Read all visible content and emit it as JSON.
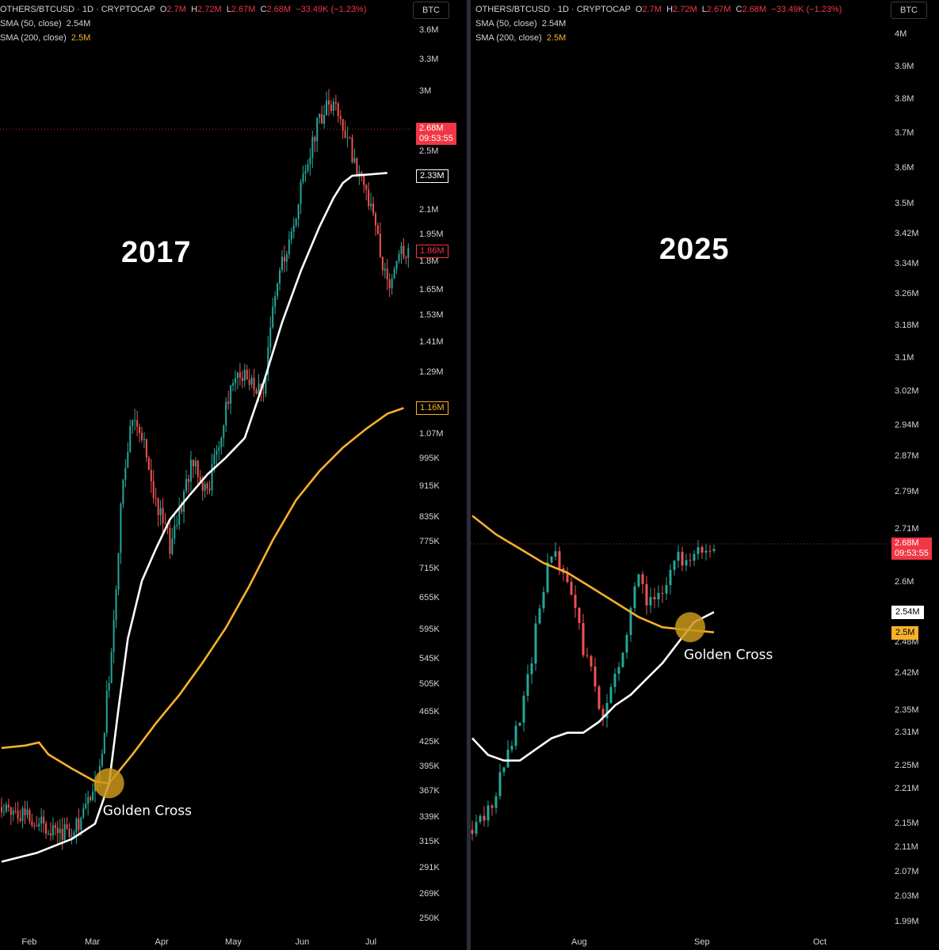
{
  "legend": {
    "symbol_line": "OTHERS/BTCUSD · 1D · CRYPTOCAP",
    "o_label": "O",
    "o_value": "2.7M",
    "h_label": "H",
    "h_value": "2.72M",
    "l_label": "L",
    "l_value": "2.67M",
    "c_label": "C",
    "c_value": "2.68M",
    "change": "−33.49K (−1.23%)",
    "sma50_label": "SMA (50, close)",
    "sma50_value": "2.54M",
    "sma200_label": "SMA (200, close)",
    "sma200_value": "2.5M"
  },
  "currency_badge": "BTC",
  "colors": {
    "up": "#26a69a",
    "down": "#ef5350",
    "sma50": "#ffffff",
    "sma200": "#f7b12b",
    "accent_red": "#f23645",
    "background": "#000000"
  },
  "chart_data": [
    {
      "type": "candlestick",
      "title": "2017",
      "annotation": "Golden Cross",
      "scale": "log",
      "y_tick_labels": [
        "3.6M",
        "3.3M",
        "3M",
        "2.5M",
        "2.1M",
        "1.95M",
        "1.8M",
        "1.65M",
        "1.53M",
        "1.41M",
        "1.29M",
        "1.07M",
        "995K",
        "915K",
        "835K",
        "775K",
        "715K",
        "655K",
        "595K",
        "545K",
        "505K",
        "465K",
        "425K",
        "395K",
        "367K",
        "339K",
        "315K",
        "291K",
        "269K",
        "250K"
      ],
      "y_tick_values": [
        3600000,
        3300000,
        3000000,
        2500000,
        2100000,
        1950000,
        1800000,
        1650000,
        1530000,
        1410000,
        1290000,
        1070000,
        995000,
        915000,
        835000,
        775000,
        715000,
        655000,
        595000,
        545000,
        505000,
        465000,
        425000,
        395000,
        367000,
        339000,
        315000,
        291000,
        269000,
        250000
      ],
      "x_tick_labels": [
        "Feb",
        "Mar",
        "Apr",
        "May",
        "Jun",
        "Jul"
      ],
      "x_tick_days": [
        12,
        39,
        69,
        99,
        129,
        159
      ],
      "price_markers": [
        {
          "label": "2.68M",
          "sub": "09:53:55",
          "value": 2680000,
          "style": "current"
        },
        {
          "label": "2.33M",
          "value": 2330000,
          "style": "sma50"
        },
        {
          "label": "1.86M",
          "value": 1860000,
          "style": "last"
        },
        {
          "label": "1.16M",
          "value": 1160000,
          "style": "sma200"
        }
      ],
      "current_line_value": 2680000,
      "cross_day": 46,
      "cross_value": 376000,
      "days": 180,
      "anchors": [
        [
          0,
          350000
        ],
        [
          10,
          345000
        ],
        [
          20,
          330000
        ],
        [
          28,
          325000
        ],
        [
          35,
          340000
        ],
        [
          42,
          390000
        ],
        [
          48,
          600000
        ],
        [
          52,
          950000
        ],
        [
          56,
          1150000
        ],
        [
          60,
          1080000
        ],
        [
          66,
          870000
        ],
        [
          72,
          770000
        ],
        [
          76,
          850000
        ],
        [
          82,
          1000000
        ],
        [
          88,
          900000
        ],
        [
          94,
          1080000
        ],
        [
          100,
          1300000
        ],
        [
          106,
          1250000
        ],
        [
          112,
          1200000
        ],
        [
          116,
          1550000
        ],
        [
          120,
          1800000
        ],
        [
          125,
          2000000
        ],
        [
          130,
          2400000
        ],
        [
          135,
          2700000
        ],
        [
          140,
          2900000
        ],
        [
          144,
          2800000
        ],
        [
          148,
          2600000
        ],
        [
          152,
          2400000
        ],
        [
          156,
          2200000
        ],
        [
          160,
          2000000
        ],
        [
          163,
          1800000
        ],
        [
          166,
          1650000
        ],
        [
          170,
          1860000
        ],
        [
          174,
          1870000
        ]
      ],
      "sma50_points": [
        [
          0,
          297000
        ],
        [
          15,
          305000
        ],
        [
          30,
          318000
        ],
        [
          40,
          333000
        ],
        [
          46,
          376000
        ],
        [
          50,
          470000
        ],
        [
          54,
          580000
        ],
        [
          60,
          690000
        ],
        [
          66,
          760000
        ],
        [
          72,
          830000
        ],
        [
          80,
          890000
        ],
        [
          88,
          950000
        ],
        [
          96,
          1000000
        ],
        [
          104,
          1060000
        ],
        [
          112,
          1250000
        ],
        [
          120,
          1500000
        ],
        [
          128,
          1750000
        ],
        [
          136,
          2000000
        ],
        [
          142,
          2180000
        ],
        [
          146,
          2280000
        ],
        [
          150,
          2330000
        ],
        [
          158,
          2340000
        ],
        [
          165,
          2350000
        ]
      ],
      "sma200_points": [
        [
          0,
          418000
        ],
        [
          10,
          421000
        ],
        [
          16,
          425000
        ],
        [
          20,
          410000
        ],
        [
          30,
          393000
        ],
        [
          40,
          378000
        ],
        [
          46,
          376000
        ],
        [
          56,
          410000
        ],
        [
          66,
          450000
        ],
        [
          76,
          490000
        ],
        [
          86,
          540000
        ],
        [
          96,
          600000
        ],
        [
          106,
          680000
        ],
        [
          116,
          780000
        ],
        [
          126,
          880000
        ],
        [
          136,
          960000
        ],
        [
          146,
          1030000
        ],
        [
          156,
          1090000
        ],
        [
          165,
          1140000
        ],
        [
          172,
          1160000
        ]
      ]
    },
    {
      "type": "candlestick",
      "title": "2025",
      "annotation": "Golden Cross",
      "scale": "log",
      "y_tick_labels": [
        "4M",
        "3.9M",
        "3.8M",
        "3.7M",
        "3.6M",
        "3.5M",
        "3.42M",
        "3.34M",
        "3.26M",
        "3.18M",
        "3.1M",
        "3.02M",
        "2.94M",
        "2.87M",
        "2.79M",
        "2.71M",
        "2.6M",
        "2.48M",
        "2.42M",
        "2.35M",
        "2.31M",
        "2.25M",
        "2.21M",
        "2.15M",
        "2.11M",
        "2.07M",
        "2.03M",
        "1.99M"
      ],
      "y_tick_values": [
        4000000,
        3900000,
        3800000,
        3700000,
        3600000,
        3500000,
        3420000,
        3340000,
        3260000,
        3180000,
        3100000,
        3020000,
        2940000,
        2870000,
        2790000,
        2710000,
        2600000,
        2480000,
        2420000,
        2350000,
        2310000,
        2250000,
        2210000,
        2150000,
        2110000,
        2070000,
        2030000,
        1990000
      ],
      "x_tick_labels": [
        "Aug",
        "Sep",
        "Oct"
      ],
      "x_tick_days": [
        27,
        58,
        88
      ],
      "price_markers": [
        {
          "label": "2.68M",
          "sub": "09:53:55",
          "value": 2680000,
          "style": "current"
        },
        {
          "label": "2.54M",
          "value": 2540000,
          "style": "sma50"
        },
        {
          "label": "2.5M",
          "value": 2500000,
          "style": "sma200"
        }
      ],
      "current_line_value": 2680000,
      "cross_day": 55,
      "cross_value": 2510000,
      "days": 118,
      "anchors": [
        [
          0,
          2140000
        ],
        [
          4,
          2170000
        ],
        [
          8,
          2250000
        ],
        [
          12,
          2330000
        ],
        [
          15,
          2450000
        ],
        [
          17,
          2560000
        ],
        [
          19,
          2630000
        ],
        [
          21,
          2650000
        ],
        [
          24,
          2600000
        ],
        [
          26,
          2560000
        ],
        [
          28,
          2460000
        ],
        [
          30,
          2420000
        ],
        [
          33,
          2330000
        ],
        [
          35,
          2400000
        ],
        [
          38,
          2460000
        ],
        [
          40,
          2560000
        ],
        [
          42,
          2620000
        ],
        [
          44,
          2560000
        ],
        [
          46,
          2560000
        ],
        [
          48,
          2590000
        ],
        [
          50,
          2620000
        ],
        [
          52,
          2660000
        ],
        [
          54,
          2640000
        ],
        [
          57,
          2660000
        ],
        [
          59,
          2670000
        ],
        [
          61,
          2680000
        ]
      ],
      "sma50_points": [
        [
          0,
          2300000
        ],
        [
          4,
          2270000
        ],
        [
          8,
          2260000
        ],
        [
          12,
          2260000
        ],
        [
          16,
          2280000
        ],
        [
          20,
          2300000
        ],
        [
          24,
          2310000
        ],
        [
          28,
          2310000
        ],
        [
          32,
          2330000
        ],
        [
          36,
          2360000
        ],
        [
          40,
          2380000
        ],
        [
          44,
          2410000
        ],
        [
          48,
          2440000
        ],
        [
          52,
          2480000
        ],
        [
          56,
          2520000
        ],
        [
          61,
          2540000
        ]
      ],
      "sma200_points": [
        [
          0,
          2740000
        ],
        [
          6,
          2700000
        ],
        [
          12,
          2670000
        ],
        [
          18,
          2640000
        ],
        [
          24,
          2620000
        ],
        [
          30,
          2590000
        ],
        [
          36,
          2560000
        ],
        [
          42,
          2530000
        ],
        [
          48,
          2510000
        ],
        [
          54,
          2505000
        ],
        [
          61,
          2500000
        ]
      ]
    }
  ]
}
